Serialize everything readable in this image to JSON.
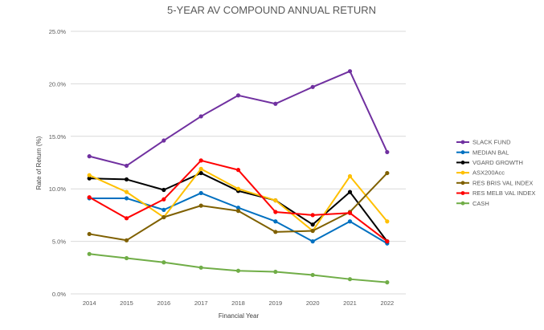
{
  "chart_data": {
    "type": "line",
    "title": "5-YEAR AV COMPOUND ANNUAL RETURN",
    "xlabel": "Financial Year",
    "ylabel": "Rate of Return (%)",
    "categories": [
      "2014",
      "2015",
      "2016",
      "2017",
      "2018",
      "2019",
      "2020",
      "2021",
      "2022"
    ],
    "ylim": [
      0,
      25
    ],
    "yticks": [
      0,
      5,
      10,
      15,
      20,
      25
    ],
    "ytick_labels": [
      "0.0%",
      "5.0%",
      "10.0%",
      "15.0%",
      "20.0%",
      "25.0%"
    ],
    "grid": true,
    "legend_position": "right",
    "series": [
      {
        "name": "SLACK FUND",
        "color": "#7030a0",
        "values": [
          13.1,
          12.2,
          14.6,
          16.9,
          18.9,
          18.1,
          19.7,
          21.2,
          13.5
        ]
      },
      {
        "name": "MEDIAN BAL",
        "color": "#0070c0",
        "values": [
          9.1,
          9.1,
          8.0,
          9.6,
          8.2,
          6.9,
          5.0,
          6.9,
          4.8
        ]
      },
      {
        "name": "VGARD GROWTH",
        "color": "#000000",
        "values": [
          11.0,
          10.9,
          9.9,
          11.5,
          9.8,
          8.9,
          6.6,
          9.7,
          5.0
        ]
      },
      {
        "name": "ASX200Acc",
        "color": "#ffc000",
        "values": [
          11.3,
          9.7,
          7.3,
          11.9,
          10.0,
          8.9,
          6.0,
          11.2,
          6.9
        ]
      },
      {
        "name": "RES BRIS VAL INDEX",
        "color": "#7f6000",
        "values": [
          5.7,
          5.1,
          7.3,
          8.4,
          7.9,
          5.9,
          6.0,
          7.8,
          11.5
        ]
      },
      {
        "name": "RES MELB VAL INDEX",
        "color": "#ff0000",
        "values": [
          9.2,
          7.2,
          9.0,
          12.7,
          11.8,
          7.8,
          7.5,
          7.7,
          5.0
        ]
      },
      {
        "name": "CASH",
        "color": "#70ad47",
        "values": [
          3.8,
          3.4,
          3.0,
          2.5,
          2.2,
          2.1,
          1.8,
          1.4,
          1.1
        ]
      }
    ]
  }
}
